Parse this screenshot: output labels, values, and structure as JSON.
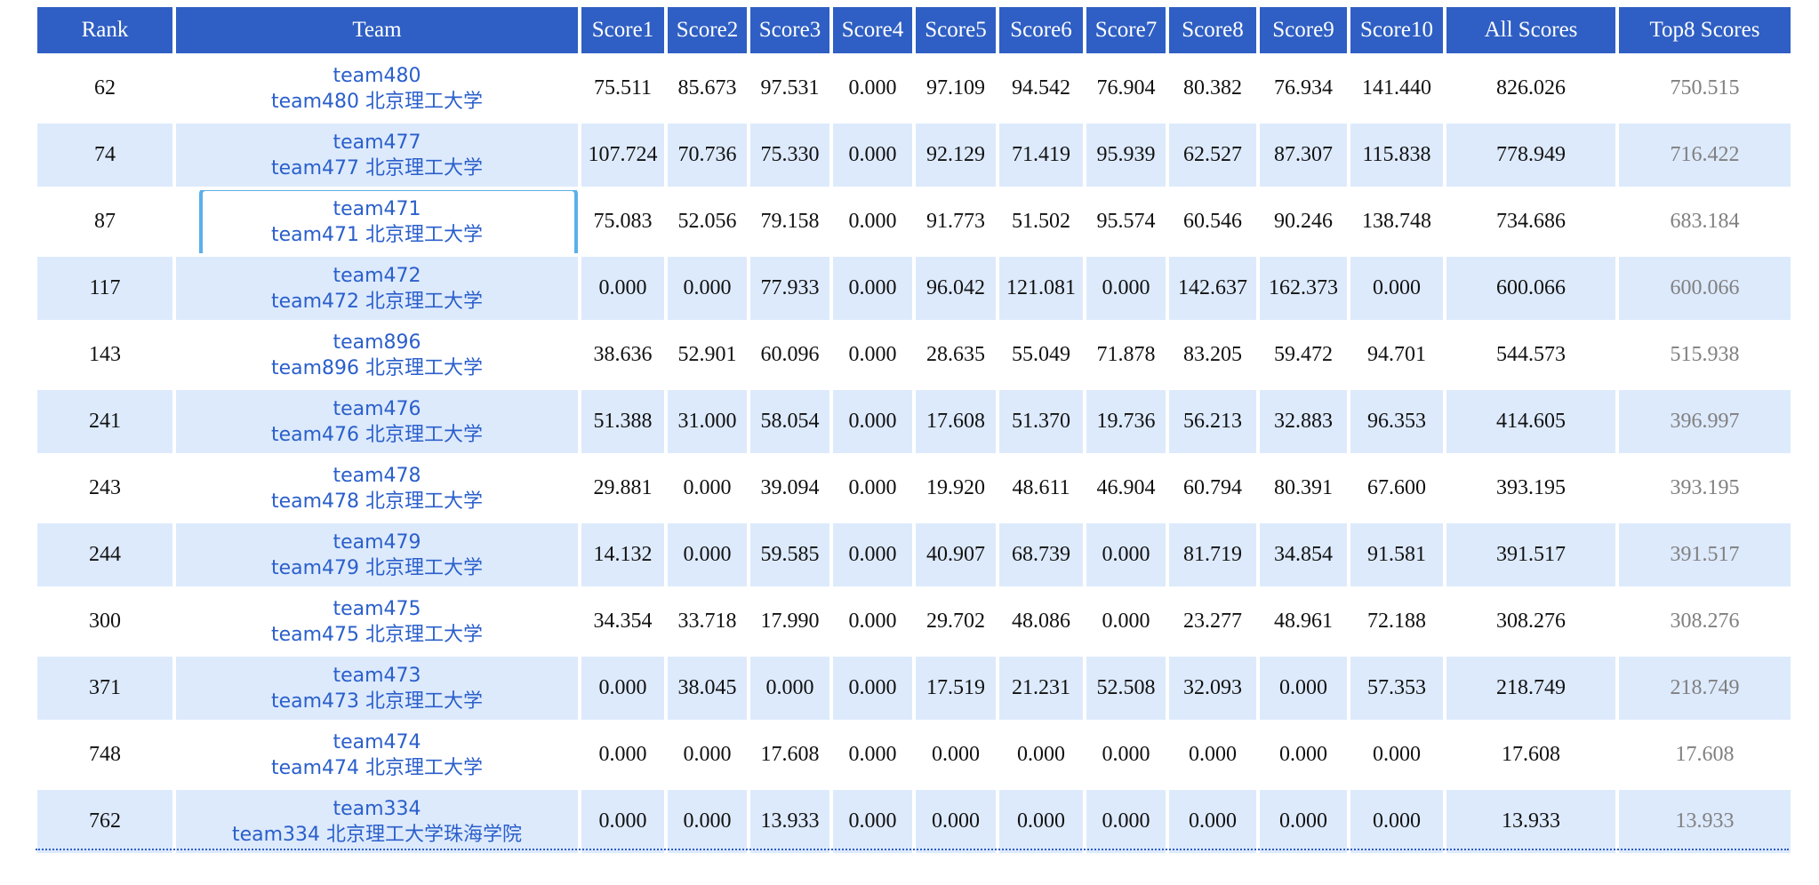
{
  "headers": [
    "Rank",
    "Team",
    "Score1",
    "Score2",
    "Score3",
    "Score4",
    "Score5",
    "Score6",
    "Score7",
    "Score8",
    "Score9",
    "Score10",
    "All Scores",
    "Top8 Scores"
  ],
  "rows": [
    {
      "rank": "62",
      "team_name": "team480",
      "team_full": "team480 北京理工大学",
      "scores": [
        "75.511",
        "85.673",
        "97.531",
        "0.000",
        "97.109",
        "94.542",
        "76.904",
        "80.382",
        "76.934",
        "141.440"
      ],
      "all": "826.026",
      "top8": "750.515"
    },
    {
      "rank": "74",
      "team_name": "team477",
      "team_full": "team477 北京理工大学",
      "scores": [
        "107.724",
        "70.736",
        "75.330",
        "0.000",
        "92.129",
        "71.419",
        "95.939",
        "62.527",
        "87.307",
        "115.838"
      ],
      "all": "778.949",
      "top8": "716.422"
    },
    {
      "rank": "87",
      "team_name": "team471",
      "team_full": "team471 北京理工大学",
      "scores": [
        "75.083",
        "52.056",
        "79.158",
        "0.000",
        "91.773",
        "51.502",
        "95.574",
        "60.546",
        "90.246",
        "138.748"
      ],
      "all": "734.686",
      "top8": "683.184",
      "focused": true
    },
    {
      "rank": "117",
      "team_name": "team472",
      "team_full": "team472 北京理工大学",
      "scores": [
        "0.000",
        "0.000",
        "77.933",
        "0.000",
        "96.042",
        "121.081",
        "0.000",
        "142.637",
        "162.373",
        "0.000"
      ],
      "all": "600.066",
      "top8": "600.066"
    },
    {
      "rank": "143",
      "team_name": "team896",
      "team_full": "team896 北京理工大学",
      "scores": [
        "38.636",
        "52.901",
        "60.096",
        "0.000",
        "28.635",
        "55.049",
        "71.878",
        "83.205",
        "59.472",
        "94.701"
      ],
      "all": "544.573",
      "top8": "515.938"
    },
    {
      "rank": "241",
      "team_name": "team476",
      "team_full": "team476 北京理工大学",
      "scores": [
        "51.388",
        "31.000",
        "58.054",
        "0.000",
        "17.608",
        "51.370",
        "19.736",
        "56.213",
        "32.883",
        "96.353"
      ],
      "all": "414.605",
      "top8": "396.997"
    },
    {
      "rank": "243",
      "team_name": "team478",
      "team_full": "team478 北京理工大学",
      "scores": [
        "29.881",
        "0.000",
        "39.094",
        "0.000",
        "19.920",
        "48.611",
        "46.904",
        "60.794",
        "80.391",
        "67.600"
      ],
      "all": "393.195",
      "top8": "393.195"
    },
    {
      "rank": "244",
      "team_name": "team479",
      "team_full": "team479 北京理工大学",
      "scores": [
        "14.132",
        "0.000",
        "59.585",
        "0.000",
        "40.907",
        "68.739",
        "0.000",
        "81.719",
        "34.854",
        "91.581"
      ],
      "all": "391.517",
      "top8": "391.517"
    },
    {
      "rank": "300",
      "team_name": "team475",
      "team_full": "team475 北京理工大学",
      "scores": [
        "34.354",
        "33.718",
        "17.990",
        "0.000",
        "29.702",
        "48.086",
        "0.000",
        "23.277",
        "48.961",
        "72.188"
      ],
      "all": "308.276",
      "top8": "308.276"
    },
    {
      "rank": "371",
      "team_name": "team473",
      "team_full": "team473 北京理工大学",
      "scores": [
        "0.000",
        "38.045",
        "0.000",
        "0.000",
        "17.519",
        "21.231",
        "52.508",
        "32.093",
        "0.000",
        "57.353"
      ],
      "all": "218.749",
      "top8": "218.749"
    },
    {
      "rank": "748",
      "team_name": "team474",
      "team_full": "team474 北京理工大学",
      "scores": [
        "0.000",
        "0.000",
        "17.608",
        "0.000",
        "0.000",
        "0.000",
        "0.000",
        "0.000",
        "0.000",
        "0.000"
      ],
      "all": "17.608",
      "top8": "17.608"
    },
    {
      "rank": "762",
      "team_name": "team334",
      "team_full": "team334 北京理工大学珠海学院",
      "scores": [
        "0.000",
        "0.000",
        "13.933",
        "0.000",
        "0.000",
        "0.000",
        "0.000",
        "0.000",
        "0.000",
        "0.000"
      ],
      "all": "13.933",
      "top8": "13.933"
    }
  ],
  "colors": {
    "header_bg": "#2f5fc4",
    "stripe_bg": "#ddeafc",
    "team_link": "#2a5fcb",
    "top8_text": "#808080",
    "focus_ring": "#5ab0ea"
  }
}
